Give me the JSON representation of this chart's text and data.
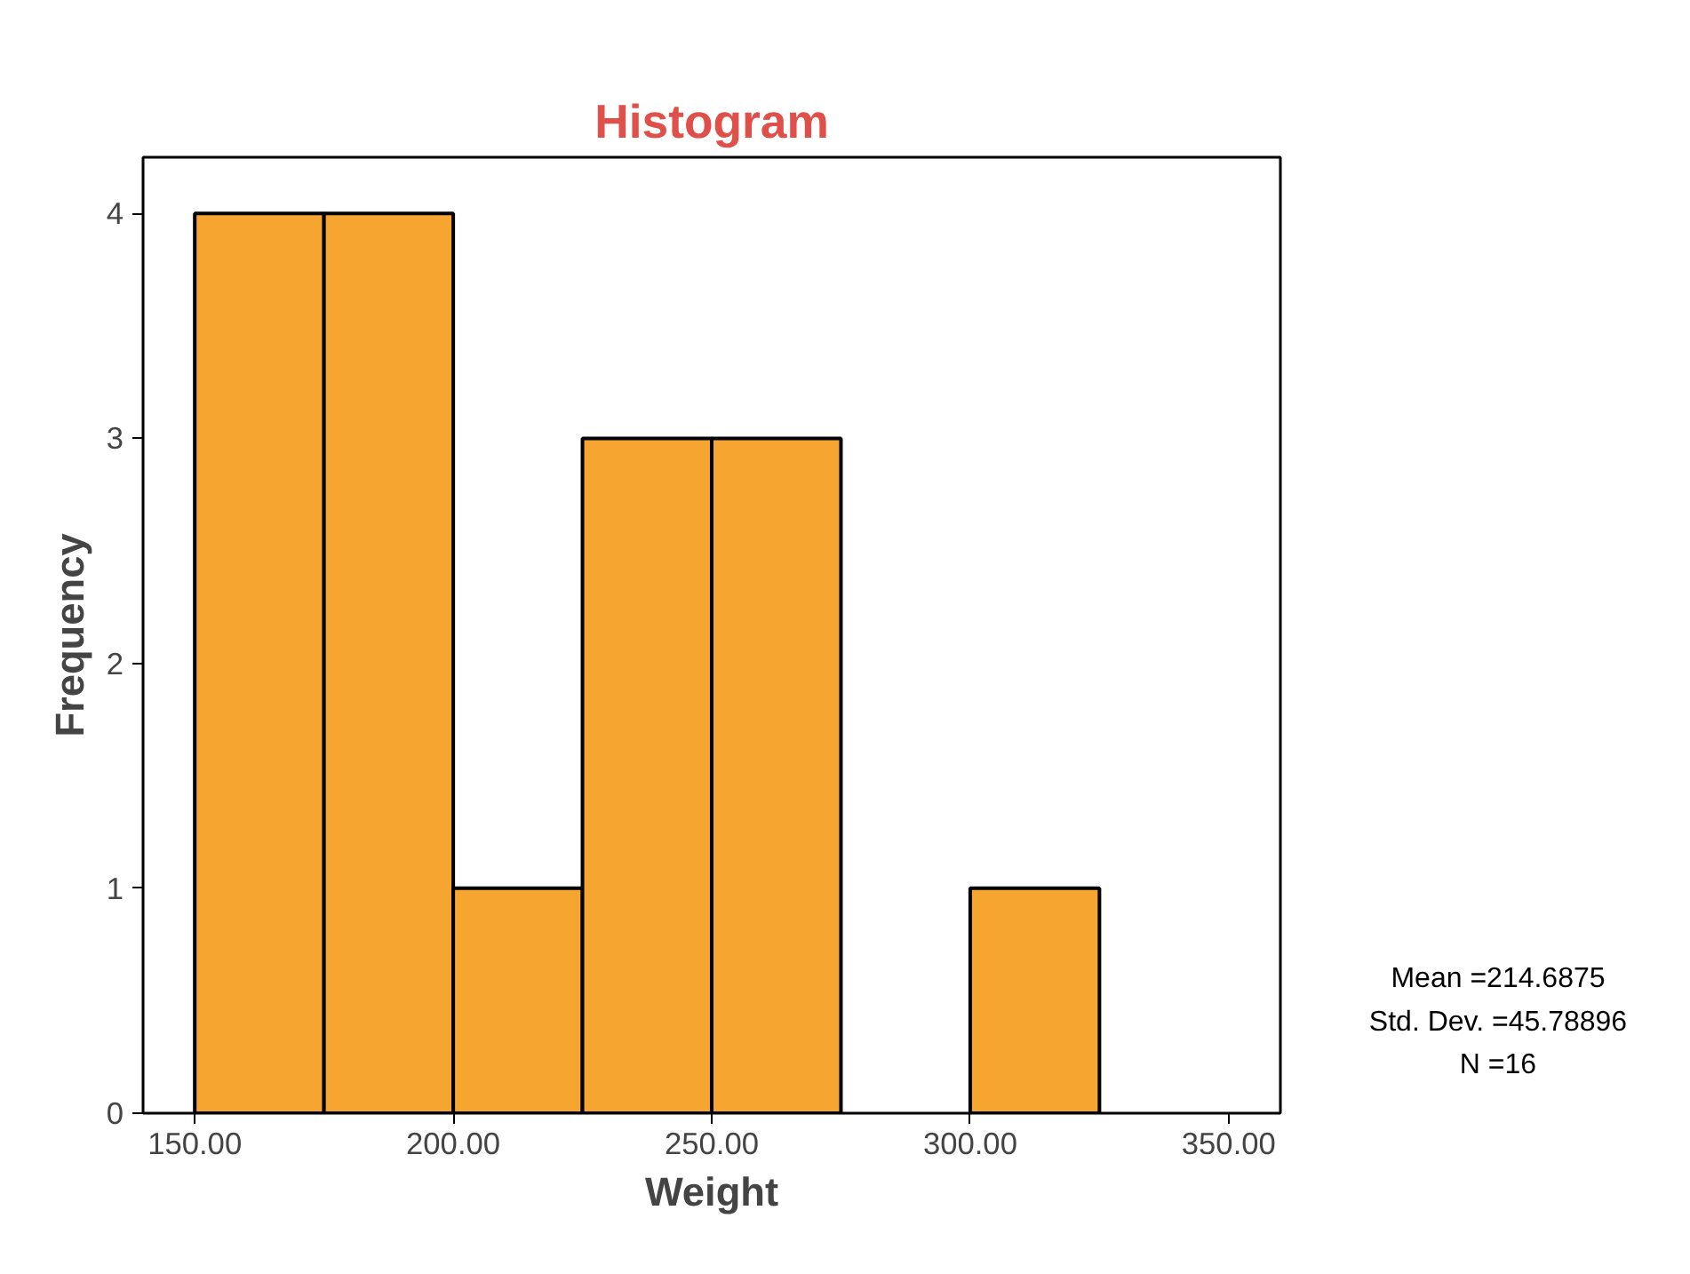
{
  "chart_data": {
    "type": "histogram",
    "title": "Histogram",
    "xlabel": "Weight",
    "ylabel": "Frequency",
    "bins": [
      150,
      175,
      200,
      225,
      250,
      275,
      300,
      325
    ],
    "values": [
      4,
      4,
      1,
      3,
      3,
      0,
      1
    ],
    "color": "#f7a531",
    "xlim": [
      140,
      360
    ],
    "ylim": [
      0,
      4.25
    ],
    "xticks": [
      {
        "value": 150,
        "label": "150.00"
      },
      {
        "value": 200,
        "label": "200.00"
      },
      {
        "value": 250,
        "label": "250.00"
      },
      {
        "value": 300,
        "label": "300.00"
      },
      {
        "value": 350,
        "label": "350.00"
      }
    ],
    "yticks": [
      0,
      1,
      2,
      3,
      4
    ],
    "grid": false,
    "annotations": [
      "Mean =214.6875",
      "Std. Dev. =45.78896",
      "N =16"
    ]
  }
}
